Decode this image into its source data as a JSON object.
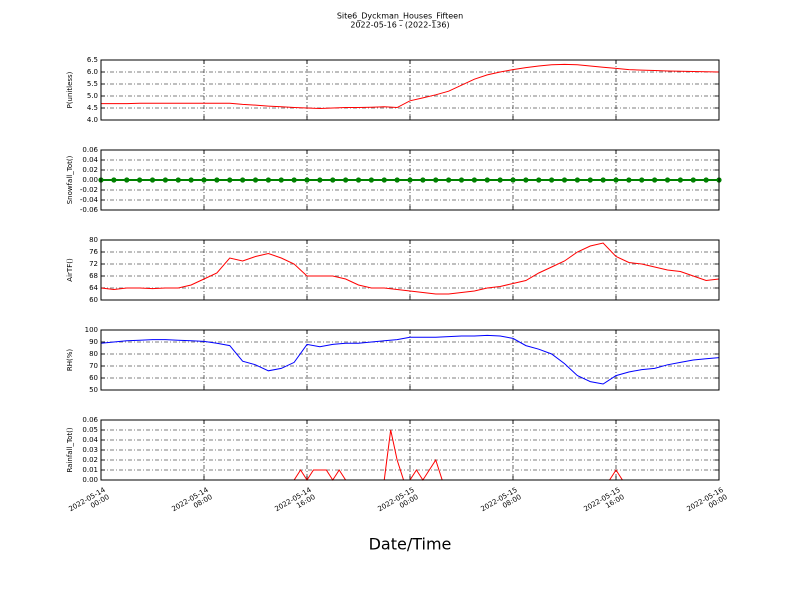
{
  "chart_data": [
    {
      "type": "line",
      "title": "Site6_Dyckman_Houses_Fifteen",
      "subtitle": "2022-05-16 - (2022-136)",
      "ylabel": "P(unitless)",
      "color": "#ff0000",
      "grid": true,
      "ylim": [
        4.0,
        6.5
      ],
      "yticks": [
        {
          "value": 4,
          "label": "4.0"
        },
        4.5,
        {
          "value": 5,
          "label": "5.0"
        },
        5.5,
        {
          "value": 6,
          "label": "6.0"
        },
        6.5
      ],
      "x": [
        "2022-05-14 00:00",
        "2022-05-14 01:00",
        "2022-05-14 02:00",
        "2022-05-14 03:00",
        "2022-05-14 04:00",
        "2022-05-14 05:00",
        "2022-05-14 06:00",
        "2022-05-14 07:00",
        "2022-05-14 08:00",
        "2022-05-14 09:00",
        "2022-05-14 10:00",
        "2022-05-14 11:00",
        "2022-05-14 12:00",
        "2022-05-14 13:00",
        "2022-05-14 14:00",
        "2022-05-14 15:00",
        "2022-05-14 16:00",
        "2022-05-14 17:00",
        "2022-05-14 18:00",
        "2022-05-14 19:00",
        "2022-05-14 20:00",
        "2022-05-14 21:00",
        "2022-05-14 22:00",
        "2022-05-14 23:00",
        "2022-05-15 00:00",
        "2022-05-15 01:00",
        "2022-05-15 02:00",
        "2022-05-15 03:00",
        "2022-05-15 04:00",
        "2022-05-15 05:00",
        "2022-05-15 06:00",
        "2022-05-15 07:00",
        "2022-05-15 08:00",
        "2022-05-15 09:00",
        "2022-05-15 10:00",
        "2022-05-15 11:00",
        "2022-05-15 12:00",
        "2022-05-15 13:00",
        "2022-05-15 14:00",
        "2022-05-15 15:00",
        "2022-05-15 16:00",
        "2022-05-15 17:00",
        "2022-05-15 18:00",
        "2022-05-15 19:00",
        "2022-05-15 20:00",
        "2022-05-15 21:00",
        "2022-05-15 22:00",
        "2022-05-15 23:00",
        "2022-05-16 00:00"
      ],
      "values": [
        4.68,
        4.68,
        4.68,
        4.7,
        4.7,
        4.7,
        4.7,
        4.7,
        4.7,
        4.7,
        4.7,
        4.65,
        4.62,
        4.58,
        4.55,
        4.52,
        4.5,
        4.48,
        4.5,
        4.52,
        4.52,
        4.53,
        4.55,
        4.52,
        4.8,
        4.92,
        5.05,
        5.2,
        5.45,
        5.7,
        5.88,
        6.0,
        6.1,
        6.18,
        6.25,
        6.3,
        6.32,
        6.3,
        6.25,
        6.2,
        6.15,
        6.1,
        6.08,
        6.06,
        6.04,
        6.03,
        6.02,
        6.01,
        6.0
      ]
    },
    {
      "type": "line",
      "ylabel": "Snowfall_Tot()",
      "color": "#008000",
      "marker": true,
      "grid": true,
      "ylim": [
        -0.06,
        0.06
      ],
      "yticks": [
        -0.06,
        -0.04,
        -0.02,
        {
          "value": 0,
          "label": "0.00"
        },
        0.02,
        0.04,
        0.06
      ],
      "x": [
        "2022-05-14 00:00",
        "2022-05-14 01:00",
        "2022-05-14 02:00",
        "2022-05-14 03:00",
        "2022-05-14 04:00",
        "2022-05-14 05:00",
        "2022-05-14 06:00",
        "2022-05-14 07:00",
        "2022-05-14 08:00",
        "2022-05-14 09:00",
        "2022-05-14 10:00",
        "2022-05-14 11:00",
        "2022-05-14 12:00",
        "2022-05-14 13:00",
        "2022-05-14 14:00",
        "2022-05-14 15:00",
        "2022-05-14 16:00",
        "2022-05-14 17:00",
        "2022-05-14 18:00",
        "2022-05-14 19:00",
        "2022-05-14 20:00",
        "2022-05-14 21:00",
        "2022-05-14 22:00",
        "2022-05-14 23:00",
        "2022-05-15 00:00",
        "2022-05-15 01:00",
        "2022-05-15 02:00",
        "2022-05-15 03:00",
        "2022-05-15 04:00",
        "2022-05-15 05:00",
        "2022-05-15 06:00",
        "2022-05-15 07:00",
        "2022-05-15 08:00",
        "2022-05-15 09:00",
        "2022-05-15 10:00",
        "2022-05-15 11:00",
        "2022-05-15 12:00",
        "2022-05-15 13:00",
        "2022-05-15 14:00",
        "2022-05-15 15:00",
        "2022-05-15 16:00",
        "2022-05-15 17:00",
        "2022-05-15 18:00",
        "2022-05-15 19:00",
        "2022-05-15 20:00",
        "2022-05-15 21:00",
        "2022-05-15 22:00",
        "2022-05-15 23:00",
        "2022-05-16 00:00"
      ],
      "values": [
        0,
        0,
        0,
        0,
        0,
        0,
        0,
        0,
        0,
        0,
        0,
        0,
        0,
        0,
        0,
        0,
        0,
        0,
        0,
        0,
        0,
        0,
        0,
        0,
        0,
        0,
        0,
        0,
        0,
        0,
        0,
        0,
        0,
        0,
        0,
        0,
        0,
        0,
        0,
        0,
        0,
        0,
        0,
        0,
        0,
        0,
        0,
        0,
        0
      ]
    },
    {
      "type": "line",
      "ylabel": "AirTF()",
      "color": "#ff0000",
      "grid": true,
      "ylim": [
        60,
        80
      ],
      "yticks": [
        60,
        64,
        68,
        72,
        76,
        80
      ],
      "x": [
        "2022-05-14 00:00",
        "2022-05-14 01:00",
        "2022-05-14 02:00",
        "2022-05-14 03:00",
        "2022-05-14 04:00",
        "2022-05-14 05:00",
        "2022-05-14 06:00",
        "2022-05-14 07:00",
        "2022-05-14 08:00",
        "2022-05-14 09:00",
        "2022-05-14 10:00",
        "2022-05-14 11:00",
        "2022-05-14 12:00",
        "2022-05-14 13:00",
        "2022-05-14 14:00",
        "2022-05-14 15:00",
        "2022-05-14 16:00",
        "2022-05-14 17:00",
        "2022-05-14 18:00",
        "2022-05-14 19:00",
        "2022-05-14 20:00",
        "2022-05-14 21:00",
        "2022-05-14 22:00",
        "2022-05-14 23:00",
        "2022-05-15 00:00",
        "2022-05-15 01:00",
        "2022-05-15 02:00",
        "2022-05-15 03:00",
        "2022-05-15 04:00",
        "2022-05-15 05:00",
        "2022-05-15 06:00",
        "2022-05-15 07:00",
        "2022-05-15 08:00",
        "2022-05-15 09:00",
        "2022-05-15 10:00",
        "2022-05-15 11:00",
        "2022-05-15 12:00",
        "2022-05-15 13:00",
        "2022-05-15 14:00",
        "2022-05-15 15:00",
        "2022-05-15 16:00",
        "2022-05-15 17:00",
        "2022-05-15 18:00",
        "2022-05-15 19:00",
        "2022-05-15 20:00",
        "2022-05-15 21:00",
        "2022-05-15 22:00",
        "2022-05-15 23:00",
        "2022-05-16 00:00"
      ],
      "values": [
        64,
        63.5,
        64,
        64,
        63.8,
        64,
        64,
        65,
        67,
        69,
        74,
        73,
        74.5,
        75.5,
        74,
        72,
        68,
        68,
        68,
        67,
        65,
        64,
        64,
        63.5,
        63,
        62.5,
        62,
        62,
        62.5,
        63,
        64,
        64.5,
        65.5,
        66.5,
        69,
        71,
        73,
        76,
        78,
        79,
        74.5,
        72.5,
        72,
        71,
        70,
        69.5,
        68,
        66.5,
        67
      ]
    },
    {
      "type": "line",
      "ylabel": "RH(%)",
      "color": "#0000ff",
      "grid": true,
      "ylim": [
        50,
        100
      ],
      "yticks": [
        50,
        60,
        70,
        80,
        90,
        100
      ],
      "x": [
        "2022-05-14 00:00",
        "2022-05-14 01:00",
        "2022-05-14 02:00",
        "2022-05-14 03:00",
        "2022-05-14 04:00",
        "2022-05-14 05:00",
        "2022-05-14 06:00",
        "2022-05-14 07:00",
        "2022-05-14 08:00",
        "2022-05-14 09:00",
        "2022-05-14 10:00",
        "2022-05-14 11:00",
        "2022-05-14 12:00",
        "2022-05-14 13:00",
        "2022-05-14 14:00",
        "2022-05-14 15:00",
        "2022-05-14 16:00",
        "2022-05-14 17:00",
        "2022-05-14 18:00",
        "2022-05-14 19:00",
        "2022-05-14 20:00",
        "2022-05-14 21:00",
        "2022-05-14 22:00",
        "2022-05-14 23:00",
        "2022-05-15 00:00",
        "2022-05-15 01:00",
        "2022-05-15 02:00",
        "2022-05-15 03:00",
        "2022-05-15 04:00",
        "2022-05-15 05:00",
        "2022-05-15 06:00",
        "2022-05-15 07:00",
        "2022-05-15 08:00",
        "2022-05-15 09:00",
        "2022-05-15 10:00",
        "2022-05-15 11:00",
        "2022-05-15 12:00",
        "2022-05-15 13:00",
        "2022-05-15 14:00",
        "2022-05-15 15:00",
        "2022-05-15 16:00",
        "2022-05-15 17:00",
        "2022-05-15 18:00",
        "2022-05-15 19:00",
        "2022-05-15 20:00",
        "2022-05-15 21:00",
        "2022-05-15 22:00",
        "2022-05-15 23:00",
        "2022-05-16 00:00"
      ],
      "values": [
        89,
        90,
        91,
        91.5,
        92,
        92,
        91.5,
        91,
        90.5,
        89,
        87,
        74,
        71,
        66,
        68,
        73,
        88,
        86,
        88,
        89,
        89,
        90,
        91,
        92,
        94,
        94,
        94,
        94.5,
        95,
        95,
        95.5,
        95,
        93,
        87,
        84,
        80,
        72,
        62,
        57,
        55,
        62,
        65,
        67,
        68,
        71,
        73,
        75,
        76,
        77
      ]
    },
    {
      "type": "line",
      "ylabel": "Rainfall_Tot()",
      "xlabel": "Date/Time",
      "color": "#ff0000",
      "grid": true,
      "ylim": [
        0,
        0.06
      ],
      "yticks": [
        {
          "value": 0,
          "label": "0.00"
        },
        0.01,
        0.02,
        0.03,
        0.04,
        0.05,
        0.06
      ],
      "xlim": [
        "2022-05-14 00:00",
        "2022-05-16 00:00"
      ],
      "xticks": [
        {
          "value": "2022-05-14 00:00",
          "label": "2022-05-14\n00:00"
        },
        {
          "value": "2022-05-14 08:00",
          "label": "2022-05-14\n08:00"
        },
        {
          "value": "2022-05-14 16:00",
          "label": "2022-05-14\n16:00"
        },
        {
          "value": "2022-05-15 00:00",
          "label": "2022-05-15\n00:00"
        },
        {
          "value": "2022-05-15 08:00",
          "label": "2022-05-15\n08:00"
        },
        {
          "value": "2022-05-15 16:00",
          "label": "2022-05-15\n16:00"
        },
        {
          "value": "2022-05-16 00:00",
          "label": "2022-05-16\n00:00"
        }
      ],
      "x": [
        "2022-05-14 00:00",
        "2022-05-14 00:30",
        "2022-05-14 01:00",
        "2022-05-14 01:30",
        "2022-05-14 02:00",
        "2022-05-14 02:30",
        "2022-05-14 03:00",
        "2022-05-14 03:30",
        "2022-05-14 04:00",
        "2022-05-14 04:30",
        "2022-05-14 05:00",
        "2022-05-14 05:30",
        "2022-05-14 06:00",
        "2022-05-14 06:30",
        "2022-05-14 07:00",
        "2022-05-14 07:30",
        "2022-05-14 08:00",
        "2022-05-14 08:30",
        "2022-05-14 09:00",
        "2022-05-14 09:30",
        "2022-05-14 10:00",
        "2022-05-14 10:30",
        "2022-05-14 11:00",
        "2022-05-14 11:30",
        "2022-05-14 12:00",
        "2022-05-14 12:30",
        "2022-05-14 13:00",
        "2022-05-14 13:30",
        "2022-05-14 14:00",
        "2022-05-14 14:30",
        "2022-05-14 15:00",
        "2022-05-14 15:30",
        "2022-05-14 16:00",
        "2022-05-14 16:30",
        "2022-05-14 17:00",
        "2022-05-14 17:30",
        "2022-05-14 18:00",
        "2022-05-14 18:30",
        "2022-05-14 19:00",
        "2022-05-14 19:30",
        "2022-05-14 20:00",
        "2022-05-14 20:30",
        "2022-05-14 21:00",
        "2022-05-14 21:30",
        "2022-05-14 22:00",
        "2022-05-14 22:30",
        "2022-05-14 23:00",
        "2022-05-14 23:30",
        "2022-05-15 00:00",
        "2022-05-15 00:30",
        "2022-05-15 01:00",
        "2022-05-15 01:30",
        "2022-05-15 02:00",
        "2022-05-15 02:30",
        "2022-05-15 03:00",
        "2022-05-15 03:30",
        "2022-05-15 04:00",
        "2022-05-15 04:30",
        "2022-05-15 05:00",
        "2022-05-15 05:30",
        "2022-05-15 06:00",
        "2022-05-15 06:30",
        "2022-05-15 07:00",
        "2022-05-15 07:30",
        "2022-05-15 08:00",
        "2022-05-15 08:30",
        "2022-05-15 09:00",
        "2022-05-15 09:30",
        "2022-05-15 10:00",
        "2022-05-15 10:30",
        "2022-05-15 11:00",
        "2022-05-15 11:30",
        "2022-05-15 12:00",
        "2022-05-15 12:30",
        "2022-05-15 13:00",
        "2022-05-15 13:30",
        "2022-05-15 14:00",
        "2022-05-15 14:30",
        "2022-05-15 15:00",
        "2022-05-15 15:30",
        "2022-05-15 16:00",
        "2022-05-15 16:30",
        "2022-05-15 17:00",
        "2022-05-15 17:30",
        "2022-05-15 18:00",
        "2022-05-15 18:30",
        "2022-05-15 19:00",
        "2022-05-15 19:30",
        "2022-05-15 20:00",
        "2022-05-15 20:30",
        "2022-05-15 21:00",
        "2022-05-15 21:30",
        "2022-05-15 22:00",
        "2022-05-15 22:30",
        "2022-05-15 23:00",
        "2022-05-15 23:30",
        "2022-05-16 00:00"
      ],
      "values": [
        0,
        0,
        0,
        0,
        0,
        0,
        0,
        0,
        0,
        0,
        0,
        0,
        0,
        0,
        0,
        0,
        0,
        0,
        0,
        0,
        0,
        0,
        0,
        0,
        0,
        0,
        0,
        0,
        0,
        0,
        0,
        0.01,
        0,
        0.01,
        0.01,
        0.01,
        0,
        0.01,
        0,
        0,
        0,
        0,
        0,
        0,
        0,
        0.05,
        0.02,
        0,
        0,
        0.01,
        0,
        0.01,
        0.02,
        0,
        0,
        0,
        0,
        0,
        0,
        0,
        0,
        0,
        0,
        0,
        0,
        0,
        0,
        0,
        0,
        0,
        0,
        0,
        0,
        0,
        0,
        0,
        0,
        0,
        0,
        0,
        0.01,
        0,
        0,
        0,
        0,
        0,
        0,
        0,
        0,
        0,
        0,
        0,
        0,
        0,
        0,
        0,
        0
      ]
    }
  ]
}
